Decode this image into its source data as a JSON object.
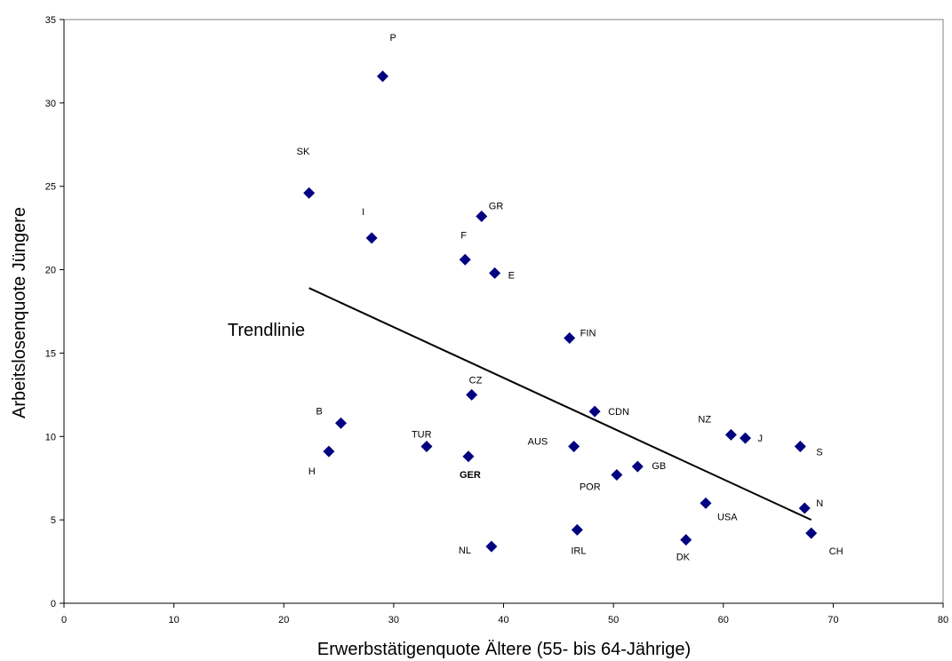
{
  "chart_data": {
    "type": "scatter",
    "title": "",
    "xlabel": "Erwerbstätigenquote Ältere (55- bis 64-Jährige)",
    "ylabel": "Arbeitslosenquote Jüngere",
    "xlim": [
      0,
      80
    ],
    "ylim": [
      0,
      35
    ],
    "xticks": [
      "0",
      "10",
      "20",
      "30",
      "40",
      "50",
      "60",
      "70",
      "80"
    ],
    "yticks": [
      "0",
      "5",
      "10",
      "15",
      "20",
      "25",
      "30",
      "35"
    ],
    "grid": false,
    "legend": "none",
    "marker_color": "#000080",
    "points": [
      {
        "label": "P",
        "x": 29.0,
        "y": 31.6
      },
      {
        "label": "SK",
        "x": 22.3,
        "y": 24.6
      },
      {
        "label": "I",
        "x": 28.0,
        "y": 21.9
      },
      {
        "label": "GR",
        "x": 38.0,
        "y": 23.2
      },
      {
        "label": "F",
        "x": 36.5,
        "y": 20.6
      },
      {
        "label": "E",
        "x": 39.2,
        "y": 19.8
      },
      {
        "label": "FIN",
        "x": 46.0,
        "y": 15.9
      },
      {
        "label": "CZ",
        "x": 37.1,
        "y": 12.5
      },
      {
        "label": "CDN",
        "x": 48.3,
        "y": 11.5
      },
      {
        "label": "B",
        "x": 25.2,
        "y": 10.8
      },
      {
        "label": "H",
        "x": 24.1,
        "y": 9.1
      },
      {
        "label": "TUR",
        "x": 33.0,
        "y": 9.4
      },
      {
        "label": "GER",
        "x": 36.8,
        "y": 8.8
      },
      {
        "label": "AUS",
        "x": 46.4,
        "y": 9.4
      },
      {
        "label": "POR",
        "x": 50.3,
        "y": 7.7
      },
      {
        "label": "GB",
        "x": 52.2,
        "y": 8.2
      },
      {
        "label": "NZ",
        "x": 60.7,
        "y": 10.1
      },
      {
        "label": "J",
        "x": 62.0,
        "y": 9.9
      },
      {
        "label": "S",
        "x": 67.0,
        "y": 9.4
      },
      {
        "label": "USA",
        "x": 58.4,
        "y": 6.0
      },
      {
        "label": "N",
        "x": 67.4,
        "y": 5.7
      },
      {
        "label": "CH",
        "x": 68.0,
        "y": 4.2
      },
      {
        "label": "DK",
        "x": 56.6,
        "y": 3.8
      },
      {
        "label": "IRL",
        "x": 46.7,
        "y": 4.4
      },
      {
        "label": "NL",
        "x": 38.9,
        "y": 3.4
      }
    ],
    "trendline": {
      "x1": 22.3,
      "y1": 18.9,
      "x2": 68.0,
      "y2": 5.0
    },
    "annotations": [
      {
        "text": "Trendlinie"
      }
    ]
  }
}
